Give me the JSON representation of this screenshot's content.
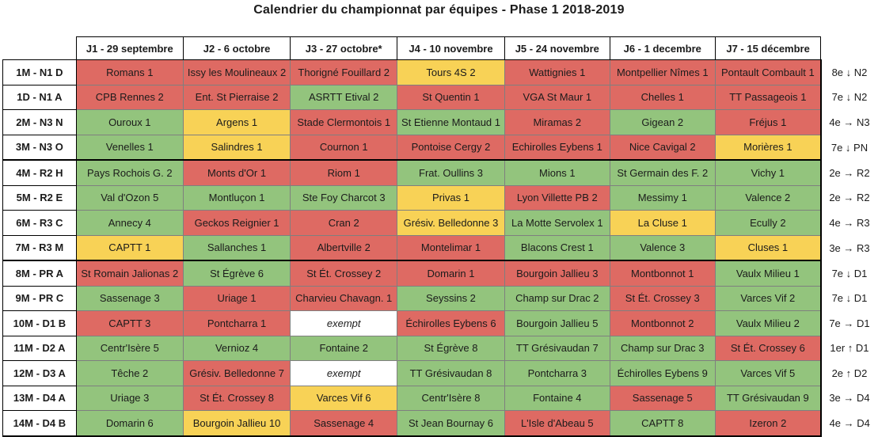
{
  "title": "Calendrier du championnat par équipes - Phase 1 2018-2019",
  "status_colors": {
    "win": "#93C47D",
    "draw": "#F8D256",
    "loss": "#DE6A63",
    "exempt": "#FFFFFF"
  },
  "table": {
    "columns": [
      "J1 - 29 septembre",
      "J2 - 6 octobre",
      "J3 - 27 octobre*",
      "J4 - 10 novembre",
      "J5 - 24 novembre",
      "J6 - 1 decembre",
      "J7 - 15 décembre"
    ],
    "rows": [
      {
        "label": "1M - N1 D",
        "result": "8e ↓ N2",
        "group_end": false,
        "cells": [
          {
            "text": "Romans 1",
            "status": "loss"
          },
          {
            "text": "Issy les Moulineaux 2",
            "status": "loss"
          },
          {
            "text": "Thorigné Fouillard 2",
            "status": "loss"
          },
          {
            "text": "Tours 4S 2",
            "status": "draw"
          },
          {
            "text": "Wattignies 1",
            "status": "loss"
          },
          {
            "text": "Montpellier Nîmes 1",
            "status": "loss"
          },
          {
            "text": "Pontault Combault 1",
            "status": "loss"
          }
        ]
      },
      {
        "label": "1D - N1 A",
        "result": "7e ↓ N2",
        "group_end": false,
        "cells": [
          {
            "text": "CPB Rennes 2",
            "status": "loss"
          },
          {
            "text": "Ent. St Pierraise 2",
            "status": "loss"
          },
          {
            "text": "ASRTT Etival 2",
            "status": "win"
          },
          {
            "text": "St Quentin 1",
            "status": "loss"
          },
          {
            "text": "VGA St Maur 1",
            "status": "loss"
          },
          {
            "text": "Chelles 1",
            "status": "loss"
          },
          {
            "text": "TT Passageois 1",
            "status": "loss"
          }
        ]
      },
      {
        "label": "2M - N3 N",
        "result": "4e → N3",
        "group_end": false,
        "cells": [
          {
            "text": "Ouroux 1",
            "status": "win"
          },
          {
            "text": "Argens 1",
            "status": "draw"
          },
          {
            "text": "Stade Clermontois 1",
            "status": "loss"
          },
          {
            "text": "St Etienne Montaud 1",
            "status": "win"
          },
          {
            "text": "Miramas 2",
            "status": "loss"
          },
          {
            "text": "Gigean 2",
            "status": "win"
          },
          {
            "text": "Fréjus 1",
            "status": "loss"
          }
        ]
      },
      {
        "label": "3M - N3 O",
        "result": "7e ↓ PN",
        "group_end": true,
        "cells": [
          {
            "text": "Venelles 1",
            "status": "win"
          },
          {
            "text": "Salindres 1",
            "status": "draw"
          },
          {
            "text": "Cournon 1",
            "status": "loss"
          },
          {
            "text": "Pontoise Cergy 2",
            "status": "loss"
          },
          {
            "text": "Echirolles Eybens 1",
            "status": "loss"
          },
          {
            "text": "Nice Cavigal 2",
            "status": "loss"
          },
          {
            "text": "Morières 1",
            "status": "draw"
          }
        ]
      },
      {
        "label": "4M - R2 H",
        "result": "2e → R2",
        "group_end": false,
        "cells": [
          {
            "text": "Pays Rochois G. 2",
            "status": "win"
          },
          {
            "text": "Monts d'Or 1",
            "status": "loss"
          },
          {
            "text": "Riom 1",
            "status": "loss"
          },
          {
            "text": "Frat. Oullins 3",
            "status": "win"
          },
          {
            "text": "Mions 1",
            "status": "win"
          },
          {
            "text": "St Germain des F. 2",
            "status": "win"
          },
          {
            "text": "Vichy 1",
            "status": "win"
          }
        ]
      },
      {
        "label": "5M - R2 E",
        "result": "2e → R2",
        "group_end": false,
        "cells": [
          {
            "text": "Val d'Ozon 5",
            "status": "win"
          },
          {
            "text": "Montluçon 1",
            "status": "win"
          },
          {
            "text": "Ste Foy Charcot 3",
            "status": "win"
          },
          {
            "text": "Privas 1",
            "status": "draw"
          },
          {
            "text": "Lyon Villette PB 2",
            "status": "loss"
          },
          {
            "text": "Messimy 1",
            "status": "win"
          },
          {
            "text": "Valence 2",
            "status": "win"
          }
        ]
      },
      {
        "label": "6M - R3 C",
        "result": "4e → R3",
        "group_end": false,
        "cells": [
          {
            "text": "Annecy 4",
            "status": "win"
          },
          {
            "text": "Geckos Reignier 1",
            "status": "loss"
          },
          {
            "text": "Cran 2",
            "status": "loss"
          },
          {
            "text": "Grésiv. Belledonne 3",
            "status": "draw"
          },
          {
            "text": "La Motte Servolex 1",
            "status": "win"
          },
          {
            "text": "La Cluse 1",
            "status": "draw"
          },
          {
            "text": "Ecully 2",
            "status": "win"
          }
        ]
      },
      {
        "label": "7M - R3 M",
        "result": "3e → R3",
        "group_end": true,
        "cells": [
          {
            "text": "CAPTT 1",
            "status": "draw"
          },
          {
            "text": "Sallanches 1",
            "status": "win"
          },
          {
            "text": "Albertville 2",
            "status": "loss"
          },
          {
            "text": "Montelimar 1",
            "status": "loss"
          },
          {
            "text": "Blacons Crest 1",
            "status": "win"
          },
          {
            "text": "Valence 3",
            "status": "win"
          },
          {
            "text": "Cluses 1",
            "status": "draw"
          }
        ]
      },
      {
        "label": "8M - PR A",
        "result": "7e ↓ D1",
        "group_end": false,
        "cells": [
          {
            "text": "St Romain Jalionas 2",
            "status": "loss"
          },
          {
            "text": "St Égrève 6",
            "status": "win"
          },
          {
            "text": "St Ét. Crossey 2",
            "status": "loss"
          },
          {
            "text": "Domarin 1",
            "status": "loss"
          },
          {
            "text": "Bourgoin Jallieu 3",
            "status": "loss"
          },
          {
            "text": "Montbonnot 1",
            "status": "loss"
          },
          {
            "text": "Vaulx Milieu 1",
            "status": "win"
          }
        ]
      },
      {
        "label": "9M - PR C",
        "result": "7e ↓ D1",
        "group_end": false,
        "cells": [
          {
            "text": "Sassenage 3",
            "status": "win"
          },
          {
            "text": "Uriage 1",
            "status": "loss"
          },
          {
            "text": "Charvieu Chavagn. 1",
            "status": "loss"
          },
          {
            "text": "Seyssins 2",
            "status": "win"
          },
          {
            "text": "Champ sur Drac 2",
            "status": "win"
          },
          {
            "text": "St Ét. Crossey 3",
            "status": "loss"
          },
          {
            "text": "Varces Vif 2",
            "status": "win"
          }
        ]
      },
      {
        "label": "10M - D1 B",
        "result": "7e → D1",
        "group_end": false,
        "cells": [
          {
            "text": "CAPTT 3",
            "status": "loss"
          },
          {
            "text": "Pontcharra 1",
            "status": "loss"
          },
          {
            "text": "exempt",
            "status": "exempt"
          },
          {
            "text": "Échirolles Eybens 6",
            "status": "loss"
          },
          {
            "text": "Bourgoin Jallieu 5",
            "status": "win"
          },
          {
            "text": "Montbonnot 2",
            "status": "loss"
          },
          {
            "text": "Vaulx Milieu 2",
            "status": "win"
          }
        ]
      },
      {
        "label": "11M - D2 A",
        "result": "1er ↑ D1",
        "group_end": false,
        "cells": [
          {
            "text": "Centr'Isère 5",
            "status": "win"
          },
          {
            "text": "Vernioz 4",
            "status": "win"
          },
          {
            "text": "Fontaine 2",
            "status": "win"
          },
          {
            "text": "St Égrève 8",
            "status": "win"
          },
          {
            "text": "TT Grésivaudan 7",
            "status": "win"
          },
          {
            "text": "Champ sur Drac 3",
            "status": "win"
          },
          {
            "text": "St Ét. Crossey 6",
            "status": "loss"
          }
        ]
      },
      {
        "label": "12M - D3 A",
        "result": "2e ↑ D2",
        "group_end": false,
        "cells": [
          {
            "text": "Têche 2",
            "status": "win"
          },
          {
            "text": "Grésiv. Belledonne 7",
            "status": "loss"
          },
          {
            "text": "exempt",
            "status": "exempt"
          },
          {
            "text": "TT Grésivaudan 8",
            "status": "win"
          },
          {
            "text": "Pontcharra 3",
            "status": "win"
          },
          {
            "text": "Échirolles Eybens 9",
            "status": "win"
          },
          {
            "text": "Varces Vif 5",
            "status": "win"
          }
        ]
      },
      {
        "label": "13M - D4 A",
        "result": "3e → D4",
        "group_end": false,
        "cells": [
          {
            "text": "Uriage 3",
            "status": "win"
          },
          {
            "text": "St Ét. Crossey 8",
            "status": "loss"
          },
          {
            "text": "Varces Vif 6",
            "status": "draw"
          },
          {
            "text": "Centr'Isère 8",
            "status": "win"
          },
          {
            "text": "Fontaine 4",
            "status": "win"
          },
          {
            "text": "Sassenage 5",
            "status": "loss"
          },
          {
            "text": "TT Grésivaudan 9",
            "status": "win"
          }
        ]
      },
      {
        "label": "14M - D4 B",
        "result": "4e → D4",
        "group_end": true,
        "cells": [
          {
            "text": "Domarin 6",
            "status": "win"
          },
          {
            "text": "Bourgoin Jallieu 10",
            "status": "draw"
          },
          {
            "text": "Sassenage 4",
            "status": "loss"
          },
          {
            "text": "St Jean Bournay 6",
            "status": "win"
          },
          {
            "text": "L'Isle d'Abeau 5",
            "status": "loss"
          },
          {
            "text": "CAPTT 8",
            "status": "win"
          },
          {
            "text": "Izeron 2",
            "status": "loss"
          }
        ]
      }
    ]
  }
}
